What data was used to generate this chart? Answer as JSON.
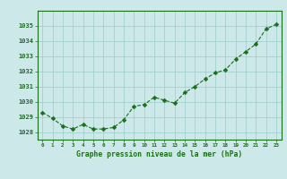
{
  "hours": [
    0,
    1,
    2,
    3,
    4,
    5,
    6,
    7,
    8,
    9,
    10,
    11,
    12,
    13,
    14,
    15,
    16,
    17,
    18,
    19,
    20,
    21,
    22,
    23
  ],
  "pressure": [
    1029.3,
    1028.9,
    1028.4,
    1028.2,
    1028.5,
    1028.2,
    1028.2,
    1028.3,
    1028.8,
    1029.7,
    1029.8,
    1030.3,
    1030.1,
    1029.9,
    1030.6,
    1031.0,
    1031.5,
    1031.9,
    1032.1,
    1032.8,
    1033.3,
    1033.8,
    1034.8,
    1035.1
  ],
  "line_color": "#1a6e1a",
  "marker": "D",
  "marker_size": 2.5,
  "bg_color": "#cce8e8",
  "grid_color": "#99cccc",
  "xlabel": "Graphe pression niveau de la mer (hPa)",
  "tick_color": "#1a6e1a",
  "ytick_labels": [
    1028,
    1029,
    1030,
    1031,
    1032,
    1033,
    1034,
    1035
  ],
  "ylim": [
    1027.5,
    1036.0
  ],
  "xlim": [
    -0.5,
    23.5
  ],
  "xtick_labels": [
    "0",
    "1",
    "2",
    "3",
    "4",
    "5",
    "6",
    "7",
    "8",
    "9",
    "10",
    "11",
    "12",
    "13",
    "14",
    "15",
    "16",
    "17",
    "18",
    "19",
    "20",
    "21",
    "22",
    "23"
  ]
}
